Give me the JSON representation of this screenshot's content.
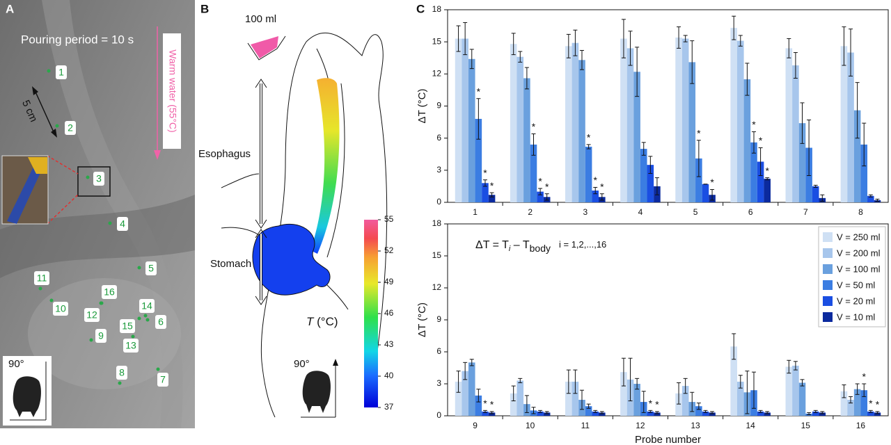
{
  "panel_a": {
    "label": "A",
    "pouring": "Pouring period = 10 s",
    "warm_water": "Warm water (55°C)",
    "scale": "5 cm",
    "probes": [
      "1",
      "2",
      "3",
      "4",
      "5",
      "6",
      "7",
      "8",
      "9",
      "10",
      "11",
      "12",
      "13",
      "14",
      "15",
      "16"
    ],
    "angle": "90°"
  },
  "panel_b": {
    "label": "B",
    "beaker": "100 ml",
    "esophagus": "Esophagus",
    "stomach": "Stomach",
    "angle": "90°",
    "colorbar": {
      "label_var": "T",
      "label_unit": " (°C)",
      "lim": [
        37,
        55
      ],
      "ticks": [
        37,
        40,
        43,
        46,
        49,
        52,
        55
      ]
    }
  },
  "panel_c": {
    "label": "C"
  },
  "chart_data": [
    {
      "type": "bar",
      "ylabel": "ΔT (°C)",
      "categories": [
        "1",
        "2",
        "3",
        "4",
        "5",
        "6",
        "7",
        "8"
      ],
      "ylim": [
        0,
        18
      ],
      "yticks": [
        0,
        3,
        6,
        9,
        12,
        15,
        18
      ],
      "series": [
        {
          "color": "#cfe0f4",
          "values": [
            15.3,
            14.8,
            14.6,
            15.3,
            15.4,
            16.3,
            14.4,
            14.6
          ],
          "errors": [
            1.2,
            1.0,
            1.1,
            1.8,
            1.0,
            1.1,
            0.9,
            1.8
          ],
          "annotations": [
            null,
            null,
            null,
            null,
            null,
            null,
            null,
            null
          ]
        },
        {
          "color": "#a7c6ec",
          "values": [
            15.3,
            13.6,
            14.9,
            14.4,
            15.3,
            15.1,
            12.8,
            14.0
          ],
          "errors": [
            1.5,
            0.5,
            1.2,
            1.6,
            0.3,
            0.5,
            1.2,
            2.2
          ],
          "annotations": [
            null,
            null,
            null,
            null,
            null,
            null,
            null,
            null
          ]
        },
        {
          "color": "#6aa0de",
          "values": [
            13.4,
            11.6,
            13.3,
            12.2,
            13.1,
            11.5,
            7.4,
            8.6
          ],
          "errors": [
            0.9,
            1.0,
            0.9,
            2.3,
            2.0,
            1.5,
            1.9,
            2.6
          ],
          "annotations": [
            null,
            null,
            null,
            null,
            null,
            null,
            null,
            null
          ]
        },
        {
          "color": "#3b7de2",
          "values": [
            7.8,
            5.4,
            5.2,
            5.0,
            4.1,
            5.6,
            5.1,
            5.4
          ],
          "errors": [
            1.9,
            1.0,
            0.2,
            0.6,
            1.7,
            1.0,
            2.6,
            2.0
          ],
          "annotations": [
            "*",
            "*",
            "*",
            null,
            "*",
            "*",
            null,
            null
          ]
        },
        {
          "color": "#1a4ee2",
          "values": [
            1.8,
            1.0,
            1.1,
            3.5,
            1.7,
            3.8,
            1.5,
            0.6
          ],
          "errors": [
            0.3,
            0.3,
            0.3,
            0.8,
            0,
            1.3,
            0.1,
            0.1
          ],
          "annotations": [
            "*",
            "*",
            "*",
            null,
            null,
            "*",
            null,
            null
          ]
        },
        {
          "color": "#0b2a9e",
          "values": [
            0.7,
            0.5,
            0.5,
            1.5,
            0.7,
            2.2,
            0.4,
            0.2
          ],
          "errors": [
            0.2,
            0.3,
            0.3,
            0.8,
            0.5,
            0.1,
            0.3,
            0.1
          ],
          "annotations": [
            "*",
            "*",
            "*",
            null,
            "*",
            "*",
            null,
            null
          ]
        }
      ]
    },
    {
      "type": "bar",
      "ylabel": "ΔT (°C)",
      "xlabel": "Probe number",
      "categories": [
        "9",
        "10",
        "11",
        "12",
        "13",
        "14",
        "15",
        "16"
      ],
      "ylim": [
        0,
        18
      ],
      "yticks": [
        0,
        3,
        6,
        9,
        12,
        15,
        18
      ],
      "legend": "upper right",
      "formula": {
        "lhs": "ΔT = T",
        "sub_i": "i",
        "mid": " – T",
        "sub_body": "body",
        "index": "i = 1,2,...,16"
      },
      "series": [
        {
          "name": "V = 250 ml",
          "color": "#cfe0f4",
          "values": [
            3.2,
            2.1,
            3.2,
            4.1,
            2.1,
            6.5,
            4.6,
            2.3
          ],
          "errors": [
            1.0,
            0.7,
            1.1,
            1.3,
            1.0,
            1.2,
            0.6,
            0.6
          ],
          "annotations": [
            null,
            null,
            null,
            null,
            null,
            null,
            null,
            null
          ]
        },
        {
          "name": "V = 200 ml",
          "color": "#a7c6ec",
          "values": [
            4.2,
            3.3,
            3.2,
            3.4,
            2.8,
            3.2,
            4.7,
            1.5
          ],
          "errors": [
            0.8,
            0.2,
            1.1,
            2.0,
            0.7,
            0.6,
            0.4,
            0.3
          ],
          "annotations": [
            null,
            null,
            null,
            null,
            null,
            null,
            null,
            null
          ]
        },
        {
          "name": "V = 100 ml",
          "color": "#6aa0de",
          "values": [
            5.0,
            1.1,
            1.5,
            3.0,
            1.3,
            2.2,
            3.1,
            2.5
          ],
          "errors": [
            0.3,
            0.8,
            0.9,
            0.5,
            0.9,
            2.0,
            0.3,
            0.5
          ],
          "annotations": [
            null,
            null,
            null,
            null,
            null,
            null,
            null,
            null
          ]
        },
        {
          "name": "V = 50 ml",
          "color": "#3b7de2",
          "values": [
            1.9,
            0.5,
            0.9,
            1.3,
            0.9,
            2.4,
            0.2,
            2.4
          ],
          "errors": [
            0.6,
            0.3,
            0.2,
            1.0,
            0.3,
            1.7,
            0.1,
            0.6
          ],
          "annotations": [
            null,
            null,
            null,
            null,
            null,
            null,
            null,
            "*"
          ]
        },
        {
          "name": "V = 20 ml",
          "color": "#1a4ee2",
          "values": [
            0.4,
            0.4,
            0.4,
            0.4,
            0.4,
            0.4,
            0.4,
            0.4
          ],
          "errors": [
            0.1,
            0.1,
            0.1,
            0.1,
            0.1,
            0.1,
            0.1,
            0.1
          ],
          "annotations": [
            "*",
            null,
            null,
            "*",
            null,
            null,
            null,
            "*"
          ]
        },
        {
          "name": "V = 10 ml",
          "color": "#0b2a9e",
          "values": [
            0.3,
            0.3,
            0.3,
            0.3,
            0.3,
            0.3,
            0.3,
            0.3
          ],
          "errors": [
            0.1,
            0.1,
            0.1,
            0.1,
            0.1,
            0.1,
            0.1,
            0.1
          ],
          "annotations": [
            "*",
            null,
            null,
            "*",
            null,
            null,
            null,
            "*"
          ]
        }
      ]
    }
  ]
}
